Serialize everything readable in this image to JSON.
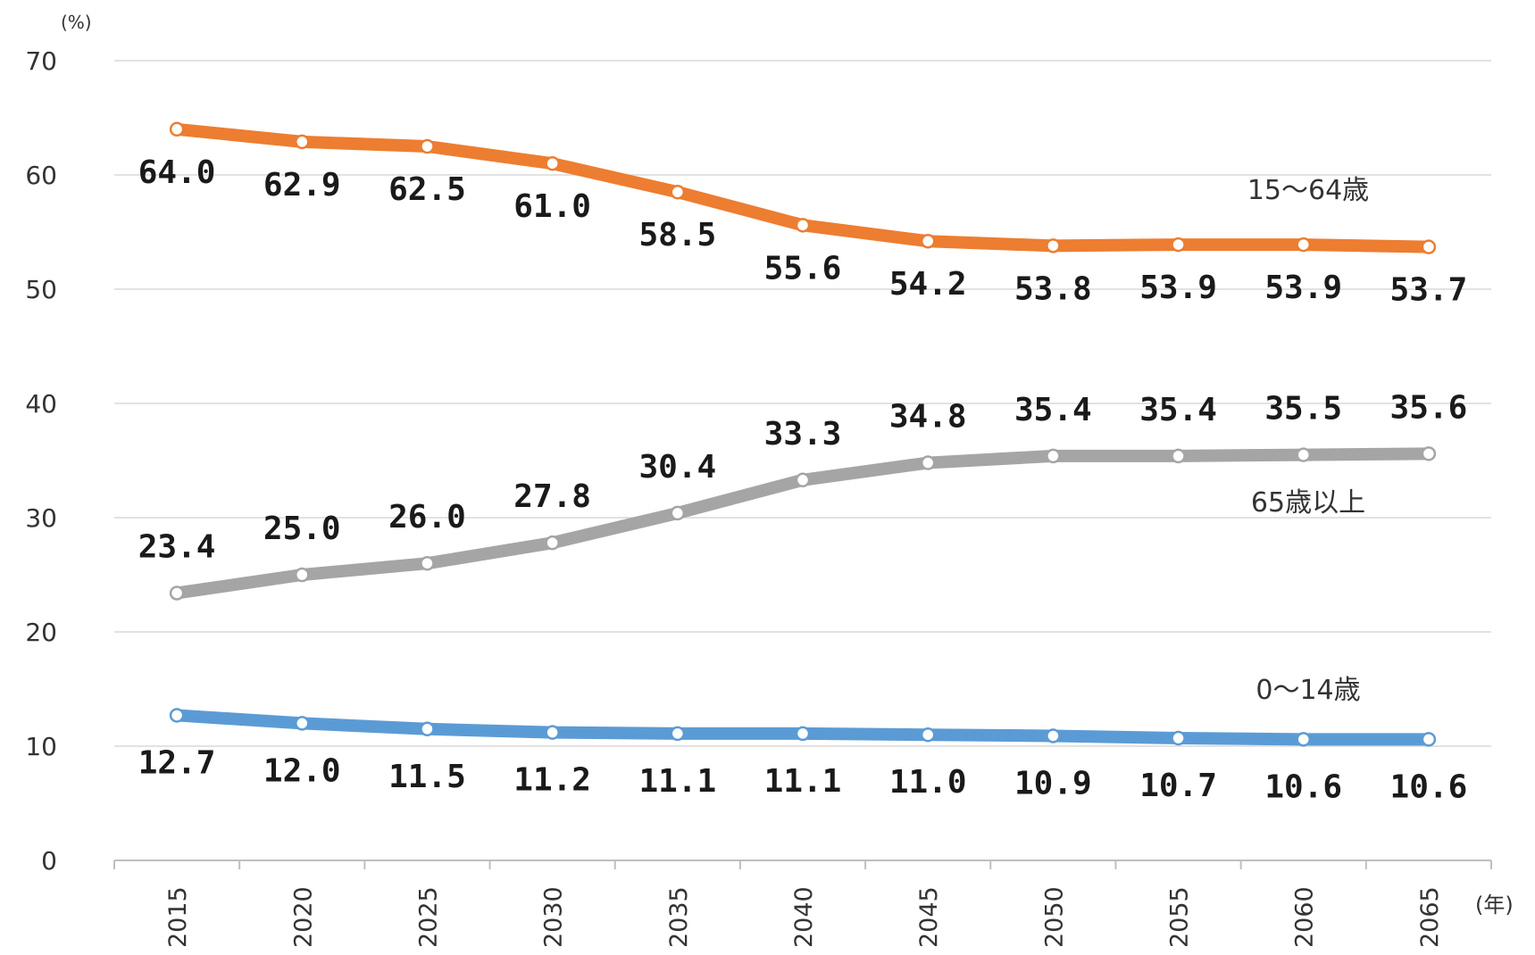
{
  "chart_data": {
    "type": "line",
    "y_unit": "(%)",
    "x_unit": "(年)",
    "x": [
      "2015",
      "2020",
      "2025",
      "2030",
      "2035",
      "2040",
      "2045",
      "2050",
      "2055",
      "2060",
      "2065"
    ],
    "ylim": [
      0,
      70
    ],
    "yticks": [
      "0",
      "10",
      "20",
      "30",
      "40",
      "50",
      "60",
      "70"
    ],
    "grid": true,
    "series": [
      {
        "name": "15〜64歳",
        "color": "#ed7d31",
        "values": [
          64.0,
          62.9,
          62.5,
          61.0,
          58.5,
          55.6,
          54.2,
          53.8,
          53.9,
          53.9,
          53.7
        ],
        "labels": [
          "64.0",
          "62.9",
          "62.5",
          "61.0",
          "58.5",
          "55.6",
          "54.2",
          "53.8",
          "53.9",
          "53.9",
          "53.7"
        ]
      },
      {
        "name": "65歳以上",
        "color": "#a5a5a5",
        "values": [
          23.4,
          25.0,
          26.0,
          27.8,
          30.4,
          33.3,
          34.8,
          35.4,
          35.4,
          35.5,
          35.6
        ],
        "labels": [
          "23.4",
          "25.0",
          "26.0",
          "27.8",
          "30.4",
          "33.3",
          "34.8",
          "35.4",
          "35.4",
          "35.5",
          "35.6"
        ]
      },
      {
        "name": "0〜14歳",
        "color": "#5b9bd5",
        "values": [
          12.7,
          12.0,
          11.5,
          11.2,
          11.1,
          11.1,
          11.0,
          10.9,
          10.7,
          10.6,
          10.6
        ],
        "labels": [
          "12.7",
          "12.0",
          "11.5",
          "11.2",
          "11.1",
          "11.1",
          "11.0",
          "10.9",
          "10.7",
          "10.6",
          "10.6"
        ]
      }
    ]
  }
}
